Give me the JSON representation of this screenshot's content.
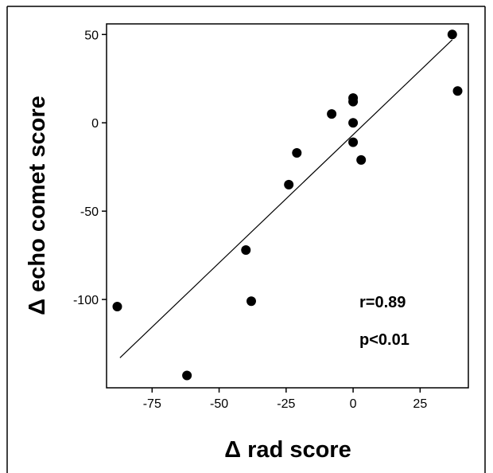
{
  "chart_data": {
    "type": "scatter",
    "xlabel": "Δ rad score",
    "ylabel": "Δ echo comet score",
    "xlim": [
      -92,
      43
    ],
    "ylim": [
      -150,
      56
    ],
    "x_ticks": [
      -75,
      -50,
      -25,
      0,
      25
    ],
    "y_ticks": [
      50,
      0,
      -50,
      -100
    ],
    "grid": false,
    "legend": "none",
    "points": [
      {
        "x": 37,
        "y": 50
      },
      {
        "x": 39,
        "y": 18
      },
      {
        "x": 0,
        "y": 14
      },
      {
        "x": 0,
        "y": 12
      },
      {
        "x": -8,
        "y": 5
      },
      {
        "x": 0,
        "y": 0
      },
      {
        "x": 0,
        "y": -11
      },
      {
        "x": 3,
        "y": -21
      },
      {
        "x": -21,
        "y": -17
      },
      {
        "x": -24,
        "y": -35
      },
      {
        "x": -40,
        "y": -72
      },
      {
        "x": -38,
        "y": -101
      },
      {
        "x": -88,
        "y": -104
      },
      {
        "x": -62,
        "y": -143
      }
    ],
    "trendline": {
      "x": [
        -87,
        37
      ],
      "y": [
        -133,
        47
      ]
    },
    "annotations": [
      "r=0.89",
      "p<0.01"
    ],
    "colors": {
      "marker": "#000000",
      "line": "#000000",
      "background": "#ffffff"
    }
  }
}
